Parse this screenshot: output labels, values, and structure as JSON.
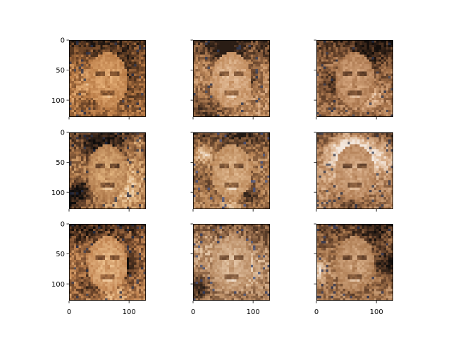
{
  "figure": {
    "background": "#ffffff",
    "axis_color": "#000000",
    "layout": "3x3 image grid, shared x and y axes"
  },
  "chart_data": [
    {
      "type": "heatmap",
      "panel": "r1c1",
      "image_size": [
        128,
        128
      ],
      "xlim": [
        0,
        128
      ],
      "ylim": [
        128,
        0
      ],
      "xticks": [
        0,
        100
      ],
      "yticks": [
        0,
        50,
        100
      ],
      "show_xtick_labels": false,
      "show_ytick_labels": true,
      "palette": [
        "#1c1410",
        "#6b4427",
        "#b87a45",
        "#e8b27a",
        "#f3e3d3",
        "#24314f"
      ],
      "content": "generated face image"
    },
    {
      "type": "heatmap",
      "panel": "r1c2",
      "image_size": [
        128,
        128
      ],
      "xlim": [
        0,
        128
      ],
      "ylim": [
        128,
        0
      ],
      "xticks": [
        0,
        100
      ],
      "yticks": [
        0,
        50,
        100
      ],
      "show_xtick_labels": false,
      "show_ytick_labels": false,
      "palette": [
        "#2a1d15",
        "#7a5235",
        "#c08a5b",
        "#e8c3a0",
        "#f6ece4",
        "#2b3b5c"
      ],
      "content": "generated face image"
    },
    {
      "type": "heatmap",
      "panel": "r1c3",
      "image_size": [
        128,
        128
      ],
      "xlim": [
        0,
        128
      ],
      "ylim": [
        128,
        0
      ],
      "xticks": [
        0,
        100
      ],
      "yticks": [
        0,
        50,
        100
      ],
      "show_xtick_labels": false,
      "show_ytick_labels": false,
      "palette": [
        "#140e0b",
        "#5a3a25",
        "#a8744b",
        "#dcae86",
        "#f5ede6",
        "#26334f"
      ],
      "content": "generated face image"
    },
    {
      "type": "heatmap",
      "panel": "r2c1",
      "image_size": [
        128,
        128
      ],
      "xlim": [
        0,
        128
      ],
      "ylim": [
        128,
        0
      ],
      "xticks": [
        0,
        100
      ],
      "yticks": [
        0,
        50,
        100
      ],
      "show_xtick_labels": false,
      "show_ytick_labels": true,
      "palette": [
        "#0e0c0c",
        "#5b3b26",
        "#b07a4c",
        "#e2b47f",
        "#f7ead8",
        "#1f2a44"
      ],
      "content": "generated face image"
    },
    {
      "type": "heatmap",
      "panel": "r2c2",
      "image_size": [
        128,
        128
      ],
      "xlim": [
        0,
        128
      ],
      "ylim": [
        128,
        0
      ],
      "xticks": [
        0,
        100
      ],
      "yticks": [
        0,
        50,
        100
      ],
      "show_xtick_labels": false,
      "show_ytick_labels": false,
      "palette": [
        "#1e1712",
        "#6e4a30",
        "#b98556",
        "#e3bd95",
        "#f6efe8",
        "#3a4f86"
      ],
      "content": "generated face image"
    },
    {
      "type": "heatmap",
      "panel": "r2c3",
      "image_size": [
        128,
        128
      ],
      "xlim": [
        0,
        128
      ],
      "ylim": [
        128,
        0
      ],
      "xticks": [
        0,
        100
      ],
      "yticks": [
        0,
        50,
        100
      ],
      "show_xtick_labels": false,
      "show_ytick_labels": false,
      "palette": [
        "#171210",
        "#64432d",
        "#b07c52",
        "#ddb591",
        "#f3e7dc",
        "#28344e"
      ],
      "content": "generated face image"
    },
    {
      "type": "heatmap",
      "panel": "r3c1",
      "image_size": [
        128,
        128
      ],
      "xlim": [
        0,
        128
      ],
      "ylim": [
        128,
        0
      ],
      "xticks": [
        0,
        100
      ],
      "yticks": [
        0,
        50,
        100
      ],
      "show_xtick_labels": true,
      "show_ytick_labels": true,
      "palette": [
        "#120d0a",
        "#6a4329",
        "#c08350",
        "#ecc08e",
        "#f4dfc8",
        "#23304c"
      ],
      "content": "generated face image"
    },
    {
      "type": "heatmap",
      "panel": "r3c2",
      "image_size": [
        128,
        128
      ],
      "xlim": [
        0,
        128
      ],
      "ylim": [
        128,
        0
      ],
      "xticks": [
        0,
        100
      ],
      "yticks": [
        0,
        50,
        100
      ],
      "show_xtick_labels": true,
      "show_ytick_labels": false,
      "palette": [
        "#1a1410",
        "#6d4a31",
        "#b88a62",
        "#e2c3a3",
        "#f7f1ec",
        "#2e4170"
      ],
      "content": "generated face image"
    },
    {
      "type": "heatmap",
      "panel": "r3c3",
      "image_size": [
        128,
        128
      ],
      "xlim": [
        0,
        128
      ],
      "ylim": [
        128,
        0
      ],
      "xticks": [
        0,
        100
      ],
      "yticks": [
        0,
        50,
        100
      ],
      "show_xtick_labels": true,
      "show_ytick_labels": false,
      "palette": [
        "#120e0c",
        "#5c3c27",
        "#a9774d",
        "#d9b08a",
        "#f2e6da",
        "#223056"
      ],
      "content": "generated face image"
    }
  ]
}
